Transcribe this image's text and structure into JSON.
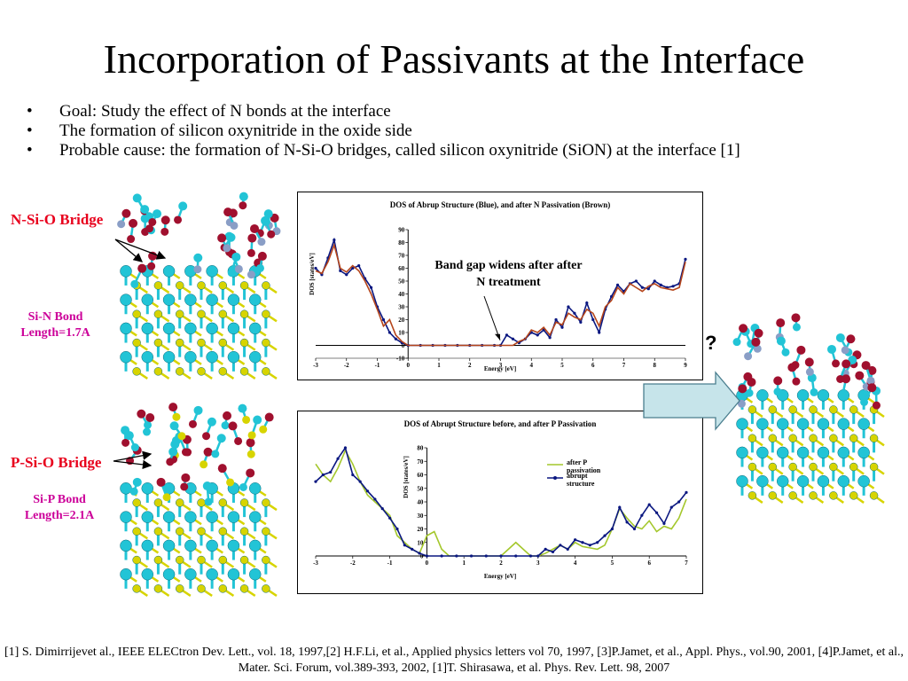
{
  "slide": {
    "title": "Incorporation of Passivants at the Interface",
    "bullets": [
      "Goal: Study the effect of N  bonds at the interface",
      "The formation of silicon oxynitride in the oxide side",
      "Probable cause: the formation of N-Si-O bridges, called silicon oxynitride (SiON) at the interface [1]"
    ],
    "labels": {
      "nsio": "N-Si-O Bridge",
      "sin_line1": "Si-N Bond",
      "sin_line2": "Length=1.7A",
      "psio": "P-Si-O Bridge",
      "sip_line1": "Si-P Bond",
      "sip_line2": "Length=2.1A",
      "question": "?"
    },
    "reference": "[1] S. Dimirrijevet al., IEEE ELECtron Dev. Lett., vol. 18, 1997,[2] H.F.Li, et al., Applied physics letters vol 70, 1997, [3]P.Jamet, et al., Appl. Phys., vol.90, 2001, [4]P.Jamet, et al., Mater. Sci. Forum, vol.389-393, 2002, [1]T. Shirasawa, et al. Phys. Rev. Lett. 98, 2007"
  },
  "colors": {
    "red_label": "#e8001c",
    "magenta_label": "#cc0099",
    "si_atom": "#22c4d6",
    "o_atom": "#a0102e",
    "n_atom": "#8a9ec6",
    "p_atom": "#d7d400",
    "arrow_fill": "#c6e4ea",
    "blue_series": "#0a1780",
    "brown_series": "#b5451b",
    "green_series": "#a4c72c"
  },
  "chart_data": [
    {
      "type": "line",
      "title": "DOS of Abrup Structure (Blue), and after N Passivation (Brown)",
      "xlabel": "Energy [eV]",
      "ylabel": "DOS [states/eV]",
      "xlim": [
        -3,
        9
      ],
      "ylim": [
        -10,
        90
      ],
      "xticks": [
        -3,
        -2,
        -1,
        0,
        1,
        2,
        3,
        4,
        5,
        6,
        7,
        8,
        9
      ],
      "yticks": [
        -10,
        0,
        10,
        20,
        30,
        40,
        50,
        60,
        70,
        80,
        90
      ],
      "annotation": {
        "line1": "Band gap widens after  after",
        "line2": "N treatment"
      },
      "series": [
        {
          "color": "#0a1780",
          "x": [
            -3,
            -2.8,
            -2.6,
            -2.4,
            -2.2,
            -2,
            -1.8,
            -1.6,
            -1.4,
            -1.2,
            -1,
            -0.8,
            -0.6,
            -0.4,
            -0.2,
            0,
            0.4,
            0.8,
            1.2,
            1.6,
            2,
            2.4,
            2.8,
            3,
            3.2,
            3.4,
            3.6,
            3.8,
            4,
            4.2,
            4.4,
            4.6,
            4.8,
            5,
            5.2,
            5.4,
            5.6,
            5.8,
            6,
            6.2,
            6.4,
            6.6,
            6.8,
            7,
            7.2,
            7.4,
            7.6,
            7.8,
            8,
            8.2,
            8.4,
            8.6,
            8.8,
            9
          ],
          "y": [
            60,
            55,
            68,
            82,
            58,
            55,
            60,
            62,
            52,
            45,
            30,
            20,
            10,
            5,
            2,
            0,
            0,
            0,
            0,
            0,
            0,
            0,
            0,
            0,
            8,
            5,
            2,
            5,
            10,
            8,
            12,
            6,
            20,
            14,
            30,
            25,
            18,
            33,
            20,
            10,
            28,
            38,
            47,
            42,
            48,
            50,
            45,
            44,
            50,
            47,
            45,
            46,
            48,
            67
          ]
        },
        {
          "color": "#b5451b",
          "x": [
            -3,
            -2.8,
            -2.6,
            -2.4,
            -2.2,
            -2,
            -1.8,
            -1.6,
            -1.4,
            -1.2,
            -1,
            -0.8,
            -0.6,
            -0.4,
            -0.2,
            0,
            0.4,
            0.8,
            1.2,
            1.6,
            2,
            2.4,
            2.8,
            3,
            3.2,
            3.4,
            3.6,
            3.8,
            4,
            4.2,
            4.4,
            4.6,
            4.8,
            5,
            5.2,
            5.4,
            5.6,
            5.8,
            6,
            6.2,
            6.4,
            6.6,
            6.8,
            7,
            7.2,
            7.4,
            7.6,
            7.8,
            8,
            8.2,
            8.4,
            8.6,
            8.8,
            9
          ],
          "y": [
            58,
            56,
            65,
            78,
            60,
            57,
            62,
            58,
            50,
            40,
            28,
            15,
            20,
            8,
            3,
            0,
            0,
            0,
            0,
            0,
            0,
            0,
            0,
            0,
            0,
            0,
            3,
            5,
            12,
            10,
            14,
            8,
            18,
            16,
            25,
            22,
            20,
            28,
            25,
            15,
            30,
            35,
            45,
            40,
            48,
            45,
            42,
            46,
            48,
            45,
            44,
            43,
            45,
            65
          ]
        }
      ]
    },
    {
      "type": "line",
      "title": "DOS of Abrupt Structure before, and after P Passivation",
      "xlabel": "Energy [eV]",
      "ylabel": "DOS [states/eV]",
      "xlim": [
        -3,
        7
      ],
      "ylim": [
        0,
        80
      ],
      "xticks": [
        -3,
        -2,
        -1,
        0,
        1,
        2,
        3,
        4,
        5,
        6,
        7
      ],
      "yticks": [
        0,
        10,
        20,
        30,
        40,
        50,
        60,
        70,
        80
      ],
      "legend_position": "upper-right",
      "series": [
        {
          "name": "after P passivation",
          "color": "#a4c72c",
          "x": [
            -3,
            -2.8,
            -2.6,
            -2.4,
            -2.2,
            -2,
            -1.8,
            -1.6,
            -1.4,
            -1.2,
            -1,
            -0.8,
            -0.6,
            -0.4,
            -0.2,
            0,
            0.2,
            0.4,
            0.6,
            0.8,
            1.2,
            1.6,
            2,
            2.2,
            2.4,
            2.6,
            2.8,
            3,
            3.2,
            3.4,
            3.6,
            3.8,
            4,
            4.2,
            4.4,
            4.6,
            4.8,
            5,
            5.2,
            5.4,
            5.6,
            5.8,
            6,
            6.2,
            6.4,
            6.6,
            6.8,
            7
          ],
          "y": [
            68,
            60,
            55,
            65,
            78,
            68,
            55,
            45,
            40,
            35,
            30,
            15,
            10,
            5,
            2,
            15,
            18,
            5,
            0,
            0,
            0,
            0,
            0,
            5,
            10,
            5,
            0,
            0,
            2,
            5,
            8,
            5,
            10,
            7,
            6,
            5,
            8,
            20,
            35,
            28,
            22,
            20,
            26,
            18,
            22,
            20,
            28,
            42
          ]
        },
        {
          "name": "abrupt structure",
          "color": "#0a1780",
          "x": [
            -3,
            -2.8,
            -2.6,
            -2.4,
            -2.2,
            -2,
            -1.8,
            -1.6,
            -1.4,
            -1.2,
            -1,
            -0.8,
            -0.6,
            -0.4,
            -0.2,
            0,
            0.4,
            0.8,
            1.2,
            1.6,
            2,
            2.4,
            2.8,
            3,
            3.2,
            3.4,
            3.6,
            3.8,
            4,
            4.2,
            4.4,
            4.6,
            4.8,
            5,
            5.2,
            5.4,
            5.6,
            5.8,
            6,
            6.2,
            6.4,
            6.6,
            6.8,
            7
          ],
          "y": [
            55,
            60,
            62,
            72,
            80,
            60,
            55,
            48,
            42,
            35,
            28,
            20,
            8,
            5,
            2,
            0,
            0,
            0,
            0,
            0,
            0,
            0,
            0,
            0,
            5,
            3,
            8,
            5,
            12,
            10,
            8,
            10,
            15,
            20,
            36,
            25,
            20,
            30,
            38,
            32,
            24,
            36,
            40,
            47
          ]
        }
      ]
    }
  ]
}
